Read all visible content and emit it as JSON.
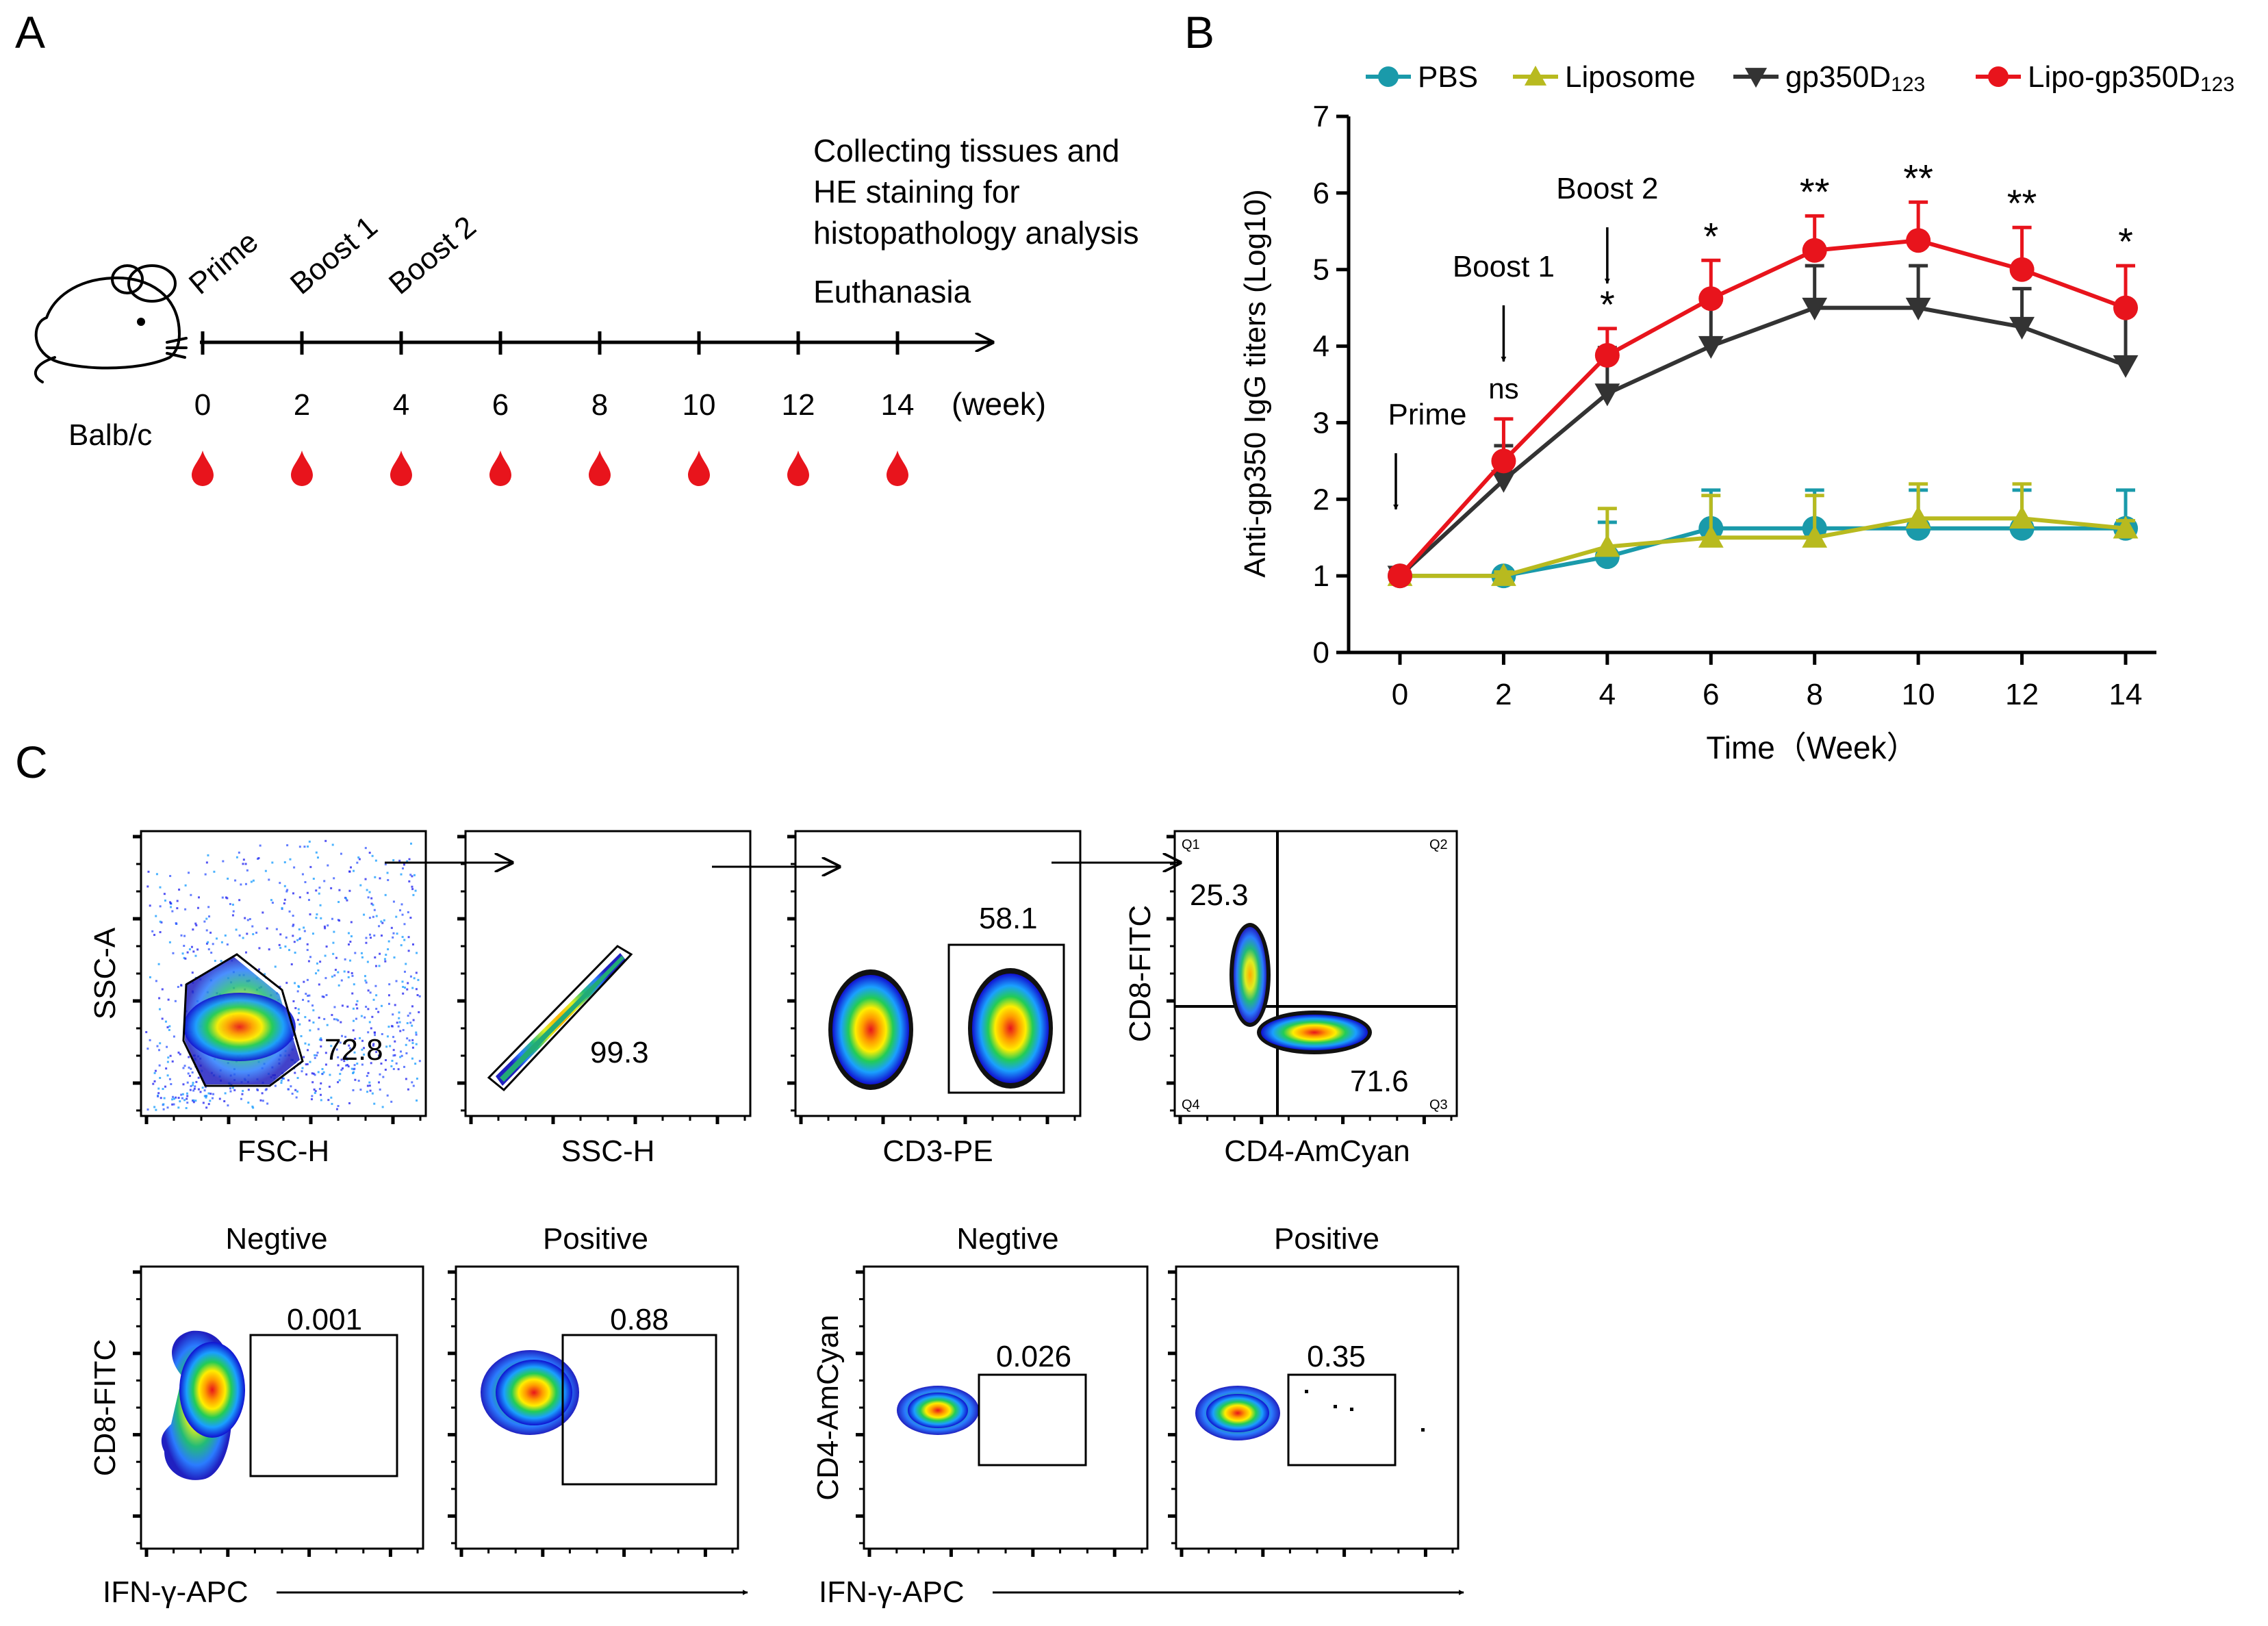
{
  "panel_labels": {
    "a": "A",
    "b": "B",
    "c": "C"
  },
  "timeline": {
    "events": [
      "Prime",
      "Boost 1",
      "Boost 2"
    ],
    "endpoint_lines": [
      "Collecting tissues and",
      "HE staining for",
      "histopathology analysis"
    ],
    "euthanasia": "Euthanasia",
    "ticks": [
      "0",
      "2",
      "4",
      "6",
      "8",
      "10",
      "12",
      "14"
    ],
    "unit": "(week)",
    "strain": "Balb/c",
    "blood_drop_color": "#e8141c"
  },
  "chart_data": {
    "type": "line",
    "title": "",
    "xlabel": "Time（Week）",
    "ylabel": "Anti-gp350 IgG titers (Log10)",
    "x": [
      0,
      2,
      4,
      6,
      8,
      10,
      12,
      14
    ],
    "xlim": [
      0,
      14
    ],
    "ylim": [
      0,
      7
    ],
    "yticks": [
      "0",
      "1",
      "2",
      "3",
      "4",
      "5",
      "6",
      "7"
    ],
    "legend_position": "top",
    "series": [
      {
        "name": "PBS",
        "marker": "circle",
        "color": "#1a9aaa",
        "values": [
          1,
          1,
          1.25,
          1.62,
          1.62,
          1.62,
          1.62,
          1.62
        ],
        "err": [
          0.1,
          0.05,
          0.45,
          0.5,
          0.5,
          0.5,
          0.5,
          0.5
        ]
      },
      {
        "name": "Liposome",
        "marker": "triangle-up",
        "color": "#b8ba1f",
        "values": [
          1,
          1,
          1.38,
          1.5,
          1.5,
          1.75,
          1.75,
          1.62
        ],
        "err": [
          0.05,
          0.05,
          0.5,
          0.55,
          0.55,
          0.45,
          0.45,
          0.1
        ]
      },
      {
        "name": "gp350D",
        "name_sub": "123",
        "marker": "triangle-down",
        "color": "#333333",
        "values": [
          1,
          2.25,
          3.38,
          4.0,
          4.5,
          4.5,
          4.25,
          3.75
        ],
        "err": [
          0.05,
          0.45,
          0.6,
          0.6,
          0.55,
          0.55,
          0.5,
          0.75
        ]
      },
      {
        "name": "Lipo-gp350D",
        "name_sub": "123",
        "marker": "circle",
        "color": "#e8141c",
        "values": [
          1,
          2.5,
          3.88,
          4.62,
          5.25,
          5.38,
          5.0,
          4.5
        ],
        "err": [
          0.05,
          0.55,
          0.35,
          0.5,
          0.45,
          0.5,
          0.55,
          0.55
        ]
      }
    ],
    "significance": [
      {
        "x": 2,
        "label": "ns"
      },
      {
        "x": 4,
        "label": "*"
      },
      {
        "x": 6,
        "label": "*"
      },
      {
        "x": 8,
        "label": "**"
      },
      {
        "x": 10,
        "label": "**"
      },
      {
        "x": 12,
        "label": "**"
      },
      {
        "x": 14,
        "label": "*"
      }
    ],
    "annotations": [
      {
        "x": 0,
        "label": "Prime"
      },
      {
        "x": 2,
        "label": "Boost 1"
      },
      {
        "x": 4,
        "label": "Boost 2"
      }
    ]
  },
  "flow": {
    "gating": [
      {
        "xlabel": "FSC-H",
        "ylabel": "SSC-A",
        "value": "72.8"
      },
      {
        "xlabel": "SSC-H",
        "ylabel": "",
        "value": "99.3"
      },
      {
        "xlabel": "CD3-PE",
        "ylabel": "",
        "value": "58.1"
      },
      {
        "xlabel": "CD4-AmCyan",
        "ylabel": "CD8-FITC",
        "value_q1": "25.3",
        "value_q3": "71.6",
        "quadrants": [
          "Q1",
          "Q2",
          "Q3",
          "Q4"
        ]
      }
    ],
    "ifn_cd8": {
      "ylabel": "CD8-FITC",
      "xlabel": "IFN-γ-APC",
      "panels": [
        {
          "title": "Negtive",
          "value": "0.001"
        },
        {
          "title": "Positive",
          "value": "0.88"
        }
      ]
    },
    "ifn_cd4": {
      "ylabel": "CD4-AmCyan",
      "xlabel": "IFN-γ-APC",
      "panels": [
        {
          "title": "Negtive",
          "value": "0.026"
        },
        {
          "title": "Positive",
          "value": "0.35"
        }
      ]
    }
  }
}
